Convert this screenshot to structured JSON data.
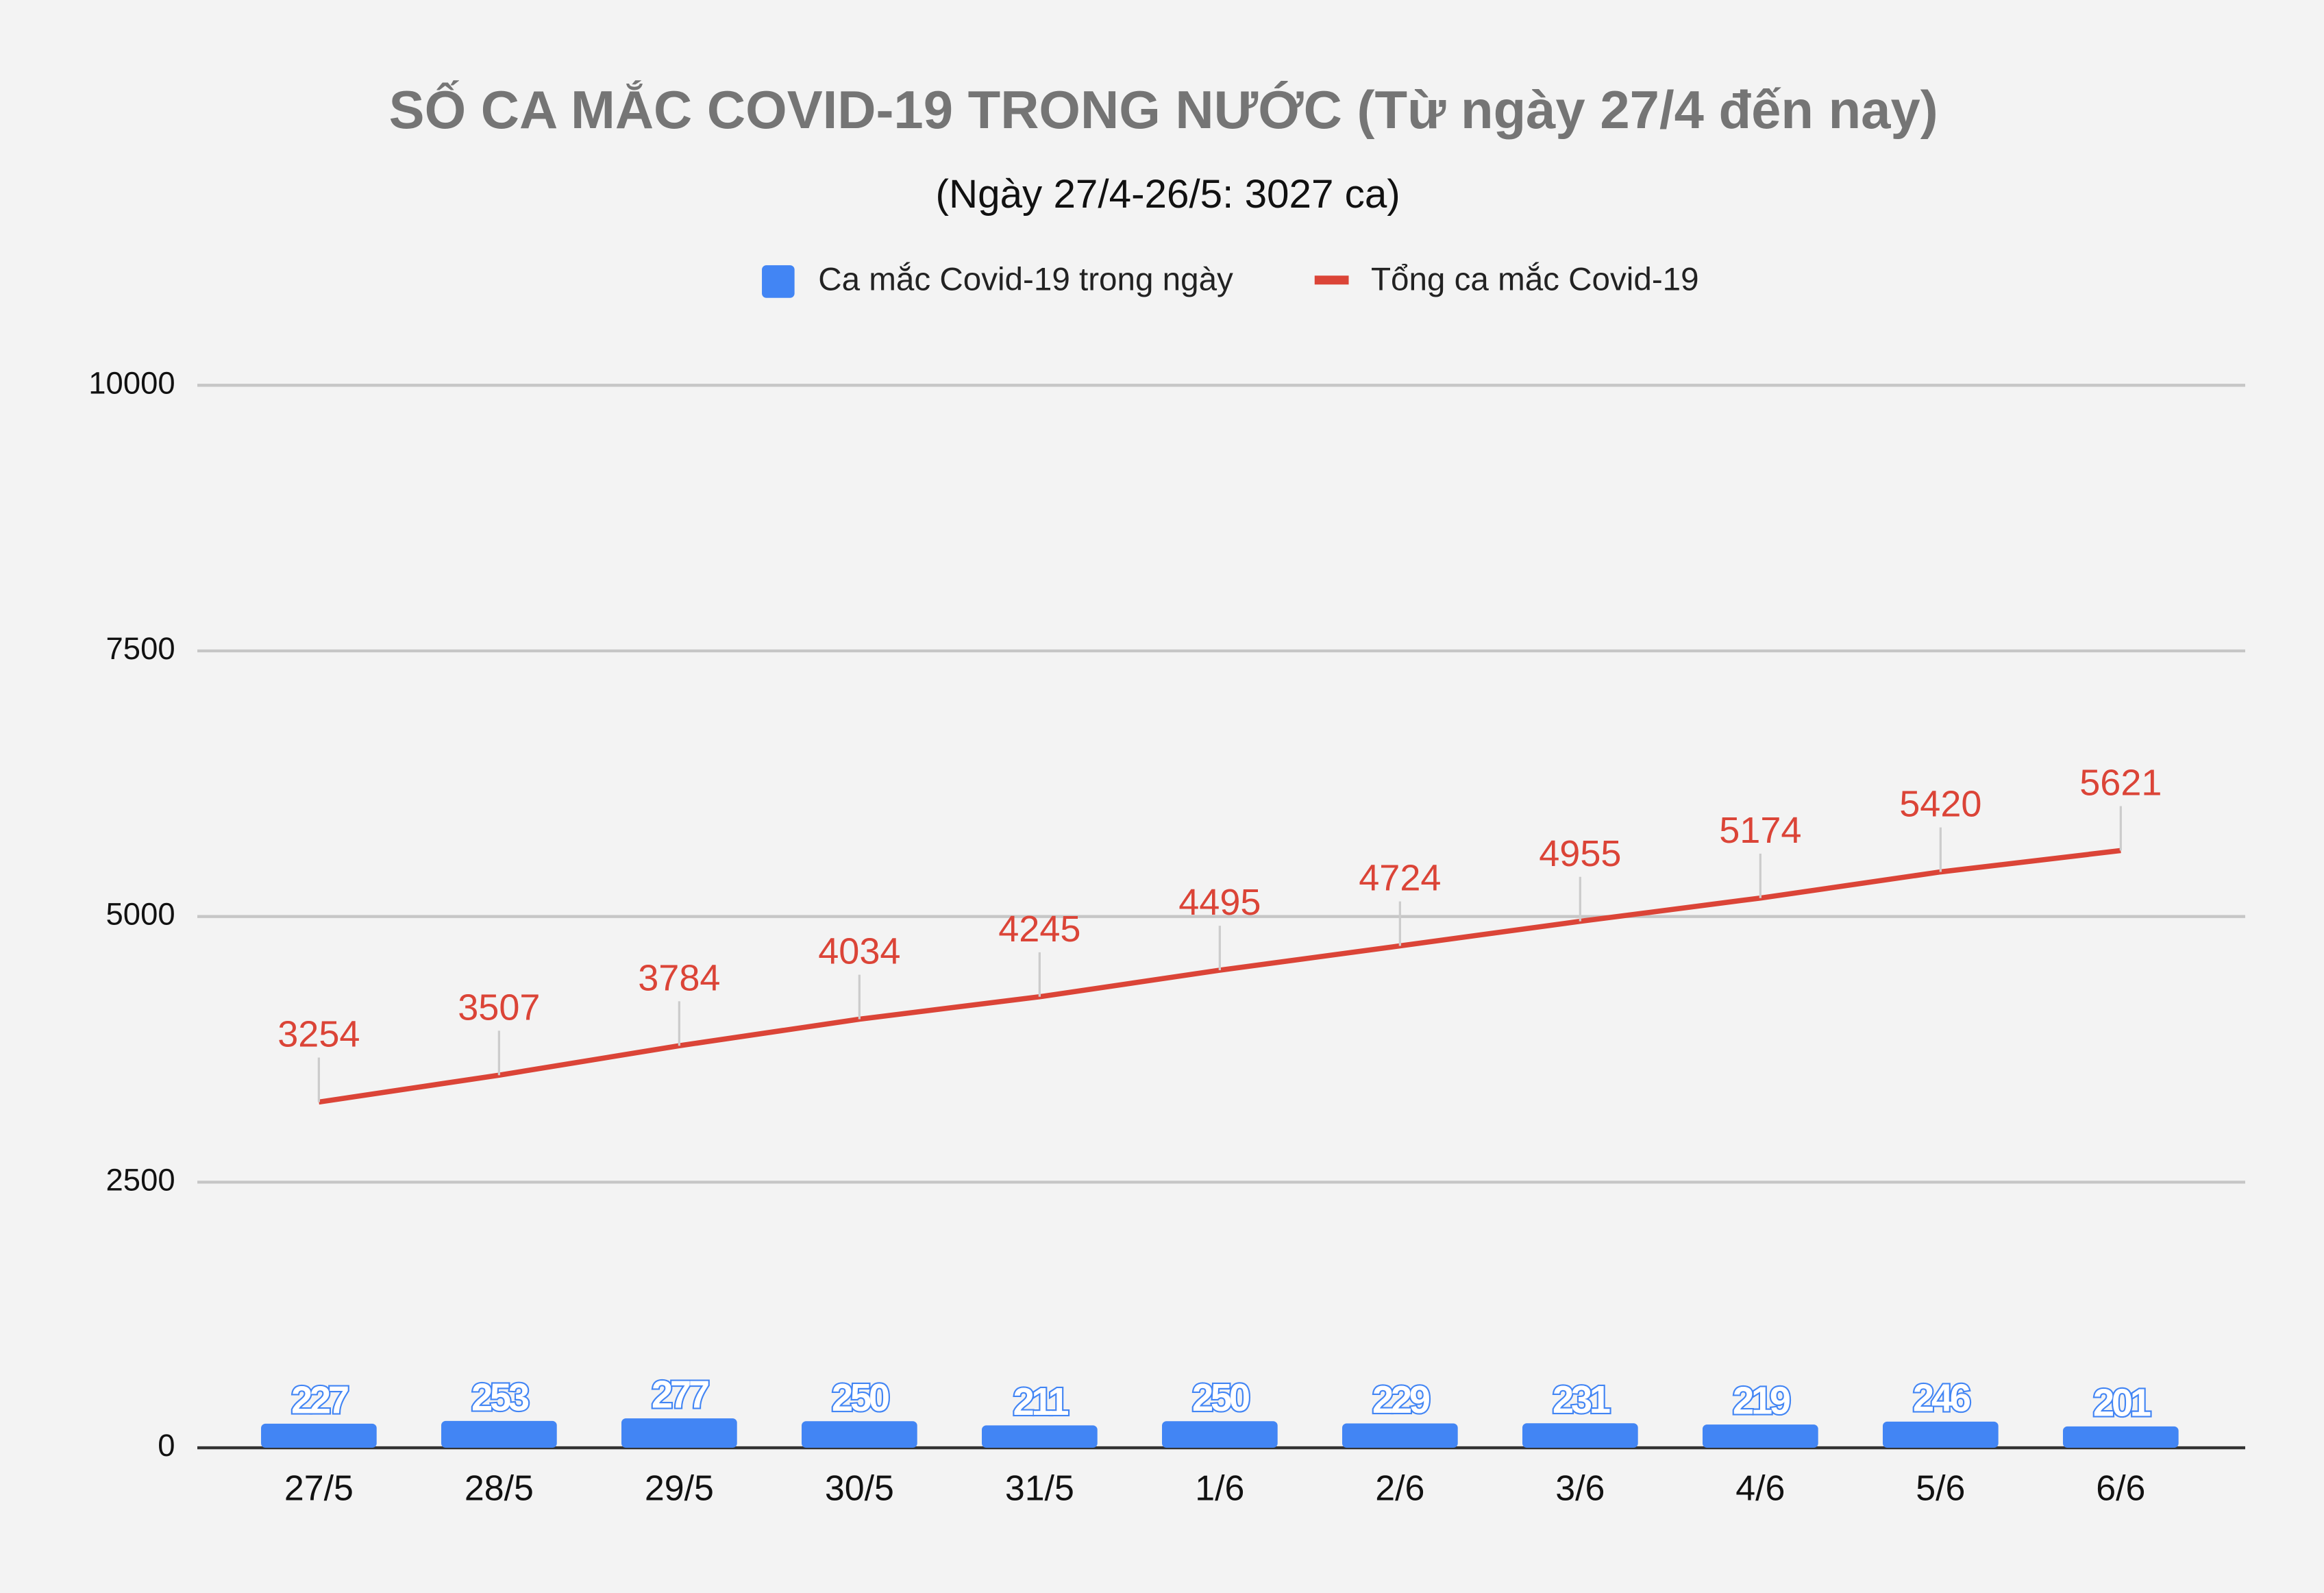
{
  "chart_data": {
    "type": "bar",
    "title": "SỐ CA MẮC COVID-19 TRONG NƯỚC (Từ ngày 27/4 đến nay)",
    "subtitle": "(Ngày 27/4-26/5: 3027 ca)",
    "categories": [
      "27/5",
      "28/5",
      "29/5",
      "30/5",
      "31/5",
      "1/6",
      "2/6",
      "3/6",
      "4/6",
      "5/6",
      "6/6"
    ],
    "series": [
      {
        "name": "Ca mắc Covid-19 trong ngày",
        "type": "bar",
        "color": "#4285f4",
        "values": [
          227,
          253,
          277,
          250,
          211,
          250,
          229,
          231,
          219,
          246,
          201
        ]
      },
      {
        "name": "Tổng ca mắc Covid-19",
        "type": "line",
        "color": "#db4437",
        "values": [
          3254,
          3507,
          3784,
          4034,
          4245,
          4495,
          4724,
          4955,
          5174,
          5420,
          5621
        ]
      }
    ],
    "ylim": [
      0,
      10000
    ],
    "yticks": [
      0,
      2500,
      5000,
      7500,
      10000
    ],
    "grid": true,
    "legend": "top"
  }
}
